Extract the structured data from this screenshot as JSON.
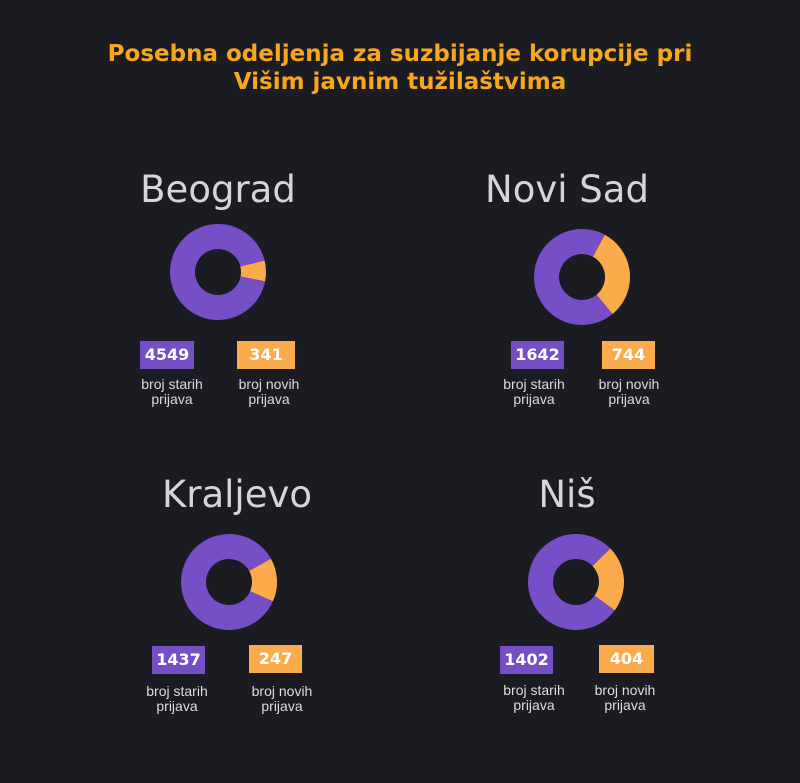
{
  "title": [
    "Posebna odeljenja za suzbijanje korupcije pri",
    "Višim javnim tužilaštvima"
  ],
  "colors": {
    "old": "#764ec5",
    "new": "#fcab4c",
    "background": "#1b1b22",
    "title": "#f6a61f"
  },
  "labels": {
    "old_line1": "broj starih",
    "new_line1": "broj novih",
    "line2": "prijava"
  },
  "chart_data": [
    {
      "type": "pie",
      "style": "donut",
      "title": "Beograd",
      "categories": [
        "broj starih prijava",
        "broj novih prijava"
      ],
      "values": [
        4549,
        341
      ]
    },
    {
      "type": "pie",
      "style": "donut",
      "title": "Novi Sad",
      "categories": [
        "broj starih prijava",
        "broj novih prijava"
      ],
      "values": [
        1642,
        744
      ]
    },
    {
      "type": "pie",
      "style": "donut",
      "title": "Kraljevo",
      "categories": [
        "broj starih prijava",
        "broj novih prijava"
      ],
      "values": [
        1437,
        247
      ]
    },
    {
      "type": "pie",
      "style": "donut",
      "title": "Niš",
      "categories": [
        "broj starih prijava",
        "broj novih prijava"
      ],
      "values": [
        1402,
        404
      ]
    }
  ]
}
